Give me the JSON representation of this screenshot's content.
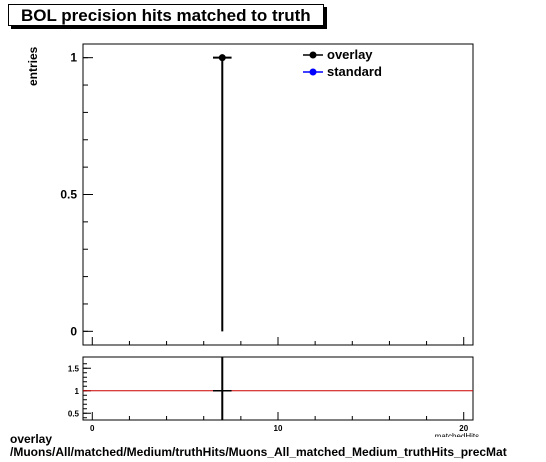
{
  "title": "BOL precision hits matched to truth",
  "chart_data": [
    {
      "type": "scatter",
      "title": "BOL precision hits matched to truth",
      "ylabel": "entries",
      "xlim": [
        -0.5,
        20.5
      ],
      "ylim": [
        -0.05,
        1.05
      ],
      "y_ticks": [
        0,
        0.5,
        1
      ],
      "y_tick_labels": [
        "0",
        "0.5",
        "1"
      ],
      "legend_placement": "top-right",
      "series": [
        {
          "name": "overlay",
          "color": "#000000",
          "points": [
            {
              "x": 7,
              "y": 1,
              "x_err": 0.5,
              "y_err_low": 1,
              "y_err_high": 0
            }
          ]
        },
        {
          "name": "standard",
          "color": "#0000ff",
          "points": []
        }
      ]
    },
    {
      "type": "line",
      "xlim": [
        -0.5,
        20.5
      ],
      "ylim": [
        0.35,
        1.75
      ],
      "x_ticks": [
        0,
        10,
        20
      ],
      "x_tick_labels": [
        "0",
        "10",
        "20"
      ],
      "y_ticks": [
        0.5,
        1,
        1.5
      ],
      "y_tick_labels": [
        "0.5",
        "1",
        "1.5"
      ],
      "reference_line": {
        "y": 1,
        "color": "#cc0000"
      },
      "points": [
        {
          "x": 7,
          "y": 1,
          "x_err": 0.5
        }
      ]
    }
  ],
  "footer": {
    "line1": "overlay",
    "line2": "/Muons/All/matched/Medium/truthHits/Muons_All_matched_Medium_truthHits_precMat"
  },
  "xaxis_label_fragment": "...matchedHits"
}
